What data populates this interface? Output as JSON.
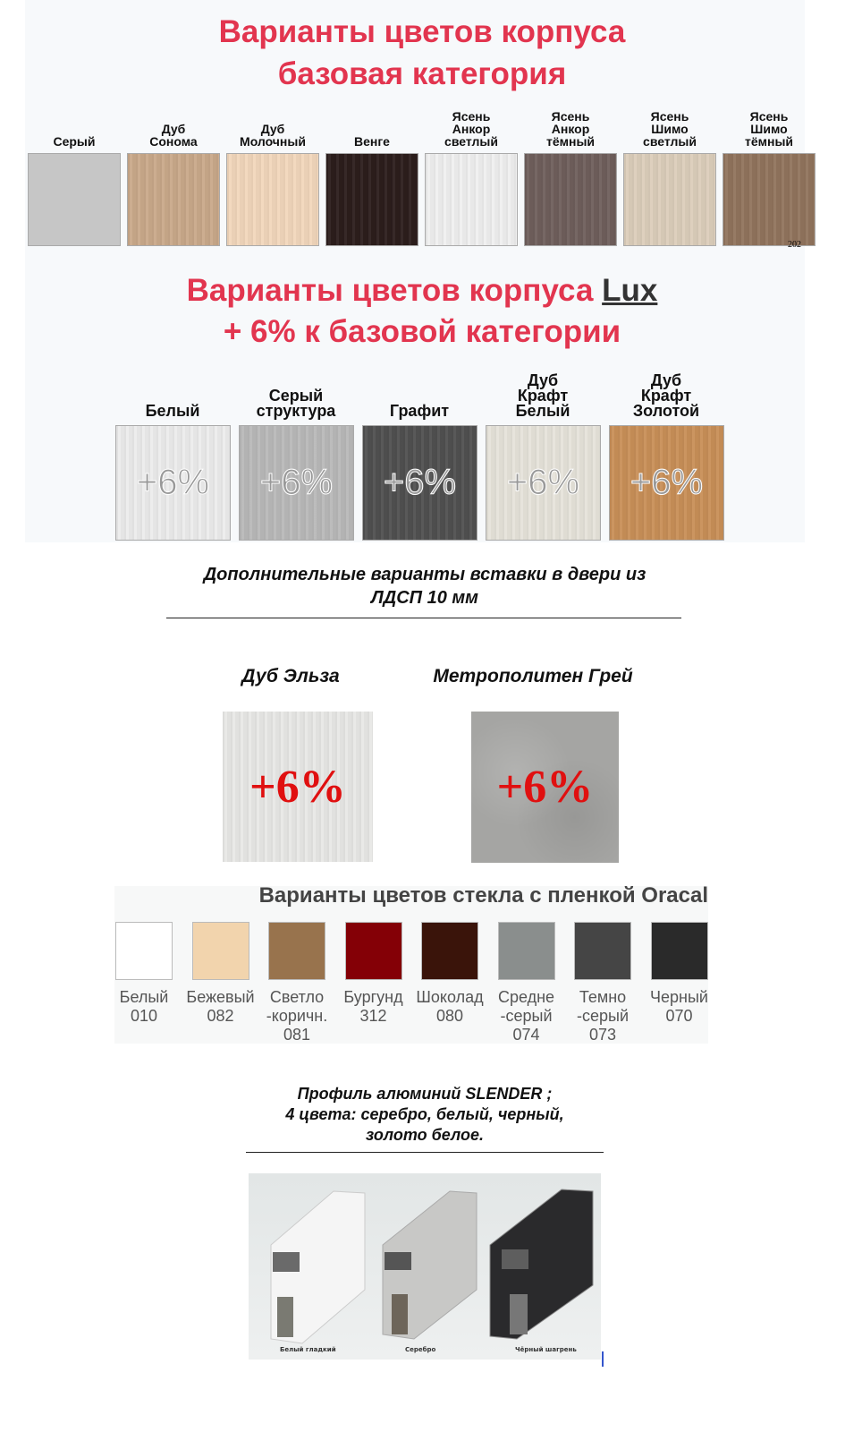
{
  "base": {
    "title_line1": "Варианты цветов корпуса",
    "title_line2": "базовая категория",
    "swatches": [
      {
        "label": "Серый",
        "color": "#c6c6c6"
      },
      {
        "label": "Дуб\nСонома",
        "color": "#c9a98a"
      },
      {
        "label": "Дуб\nМолочный",
        "color": "#f2d7bc"
      },
      {
        "label": "Венге",
        "color": "#2c1e1c"
      },
      {
        "label": "Ясень\nАнкор\nсветлый",
        "color": "#efefef"
      },
      {
        "label": "Ясень\nАнкор\nтёмный",
        "color": "#6f5f5c"
      },
      {
        "label": "Ясень\nШимо\nсветлый",
        "color": "#dccebb"
      },
      {
        "label": "Ясень\nШимо\nтёмный",
        "color": "#91745d"
      }
    ],
    "corner_text": "202"
  },
  "lux": {
    "title_line1_prefix": "Варианты цветов корпуса ",
    "title_line1_lux": "Lux",
    "title_line2": "+ 6% к базовой категории",
    "badge": "+6%",
    "swatches": [
      {
        "label": "Белый",
        "color": "#ececec"
      },
      {
        "label": "Серый\nструктура",
        "color": "#b9b9b9"
      },
      {
        "label": "Графит",
        "color": "#505050"
      },
      {
        "label": "Дуб\nКрафт\nБелый",
        "color": "#e6e3da"
      },
      {
        "label": "Дуб\nКрафт\nЗолотой",
        "color": "#c88f58"
      }
    ]
  },
  "inserts": {
    "heading_line1": "Дополнительные варианты вставки в двери из",
    "heading_line2": "ЛДСП 10 мм",
    "items": [
      {
        "label": "Дуб Эльза",
        "badge": "+6%",
        "color": "#e8e8e6"
      },
      {
        "label": "Метрополитен Грей",
        "badge": "+6%",
        "color": "#a5a5a3"
      }
    ]
  },
  "glass": {
    "title": "Варианты цветов стекла с пленкой Oracal",
    "swatches": [
      {
        "name": "Белый",
        "code": "010",
        "color": "#ffffff"
      },
      {
        "name": "Бежевый",
        "code": "082",
        "color": "#f2d4ad"
      },
      {
        "name": "Светло\n-коричн.",
        "code": "081",
        "color": "#98734d"
      },
      {
        "name": "Бургунд",
        "code": "312",
        "color": "#840006"
      },
      {
        "name": "Шоколад",
        "code": "080",
        "color": "#3a140a"
      },
      {
        "name": "Средне\n-серый",
        "code": "074",
        "color": "#8a8e8d"
      },
      {
        "name": "Темно\n-серый",
        "code": "073",
        "color": "#454545"
      },
      {
        "name": "Черный",
        "code": "070",
        "color": "#2a2a2a"
      }
    ]
  },
  "profile": {
    "line1": "Профиль алюминий SLENDER ;",
    "line2": "4 цвета: серебро, белый, черный,",
    "line3": "золото белое.",
    "captions": [
      "Белый гладкий",
      "Серебро",
      "Чёрный шагрень"
    ]
  }
}
